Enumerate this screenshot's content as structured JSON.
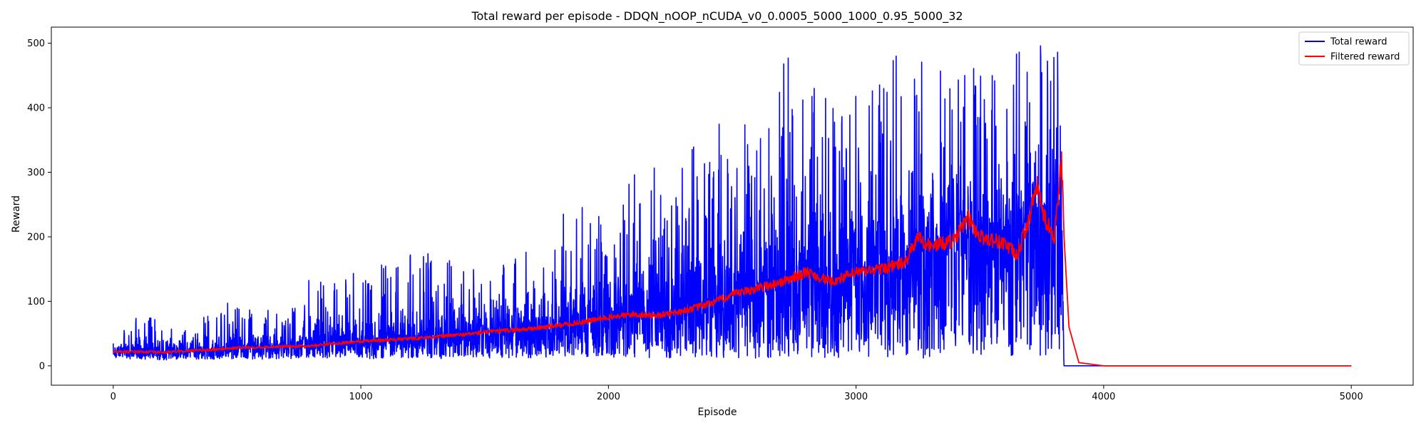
{
  "chart_data": {
    "type": "line",
    "title": "Total reward per episode - DDQN_nOOP_nCUDA_v0_0.0005_5000_1000_0.95_5000_32",
    "xlabel": "Episode",
    "ylabel": "Reward",
    "xlim": [
      -250,
      5250
    ],
    "ylim": [
      -30,
      525
    ],
    "xticks": [
      0,
      1000,
      2000,
      3000,
      4000,
      5000
    ],
    "yticks": [
      0,
      100,
      200,
      300,
      400,
      500
    ],
    "grid": false,
    "legend_position": "top-right",
    "series": [
      {
        "name": "Total reward",
        "color": "#0000ff",
        "x": [
          0,
          100,
          200,
          300,
          400,
          500,
          600,
          700,
          800,
          900,
          1000,
          1100,
          1200,
          1300,
          1400,
          1500,
          1600,
          1700,
          1800,
          1900,
          2000,
          2100,
          2200,
          2300,
          2400,
          2500,
          2600,
          2700,
          2800,
          2900,
          3000,
          3100,
          3200,
          3300,
          3400,
          3500,
          3600,
          3700,
          3750,
          3800,
          3830,
          3840,
          4000,
          5000
        ],
        "mean": [
          22,
          22,
          22,
          23,
          25,
          27,
          29,
          30,
          32,
          35,
          38,
          40,
          42,
          45,
          48,
          52,
          55,
          58,
          63,
          68,
          75,
          80,
          78,
          85,
          95,
          110,
          120,
          130,
          140,
          130,
          145,
          150,
          160,
          185,
          195,
          200,
          190,
          230,
          250,
          220,
          200,
          0,
          0,
          0
        ],
        "max": [
          47,
          80,
          70,
          60,
          85,
          105,
          90,
          75,
          150,
          130,
          155,
          160,
          180,
          175,
          165,
          140,
          175,
          190,
          240,
          250,
          235,
          300,
          310,
          330,
          360,
          420,
          400,
          500,
          500,
          420,
          440,
          450,
          500,
          470,
          500,
          450,
          480,
          500,
          500,
          500,
          500,
          0,
          0,
          0
        ],
        "min": [
          12,
          10,
          9,
          10,
          10,
          11,
          10,
          11,
          11,
          11,
          11,
          11,
          11,
          11,
          12,
          12,
          12,
          12,
          12,
          12,
          12,
          12,
          12,
          12,
          12,
          12,
          12,
          12,
          12,
          12,
          12,
          12,
          12,
          12,
          12,
          12,
          12,
          12,
          15,
          20,
          20,
          0,
          0,
          0
        ]
      },
      {
        "name": "Filtered reward",
        "color": "#ff0000",
        "x": [
          0,
          100,
          200,
          300,
          400,
          500,
          600,
          700,
          800,
          900,
          1000,
          1100,
          1200,
          1300,
          1400,
          1500,
          1600,
          1700,
          1800,
          1900,
          2000,
          2100,
          2200,
          2300,
          2400,
          2500,
          2600,
          2700,
          2800,
          2900,
          3000,
          3100,
          3200,
          3250,
          3300,
          3400,
          3450,
          3500,
          3600,
          3650,
          3700,
          3730,
          3760,
          3800,
          3830,
          3840,
          3860,
          3900,
          4000,
          5000
        ],
        "y": [
          22,
          22,
          21,
          23,
          25,
          28,
          29,
          30,
          31,
          35,
          38,
          40,
          42,
          45,
          48,
          52,
          55,
          58,
          63,
          68,
          75,
          80,
          78,
          85,
          95,
          110,
          120,
          130,
          145,
          130,
          145,
          150,
          160,
          200,
          185,
          195,
          230,
          200,
          190,
          170,
          230,
          280,
          230,
          200,
          320,
          200,
          60,
          5,
          0,
          0
        ]
      }
    ]
  }
}
